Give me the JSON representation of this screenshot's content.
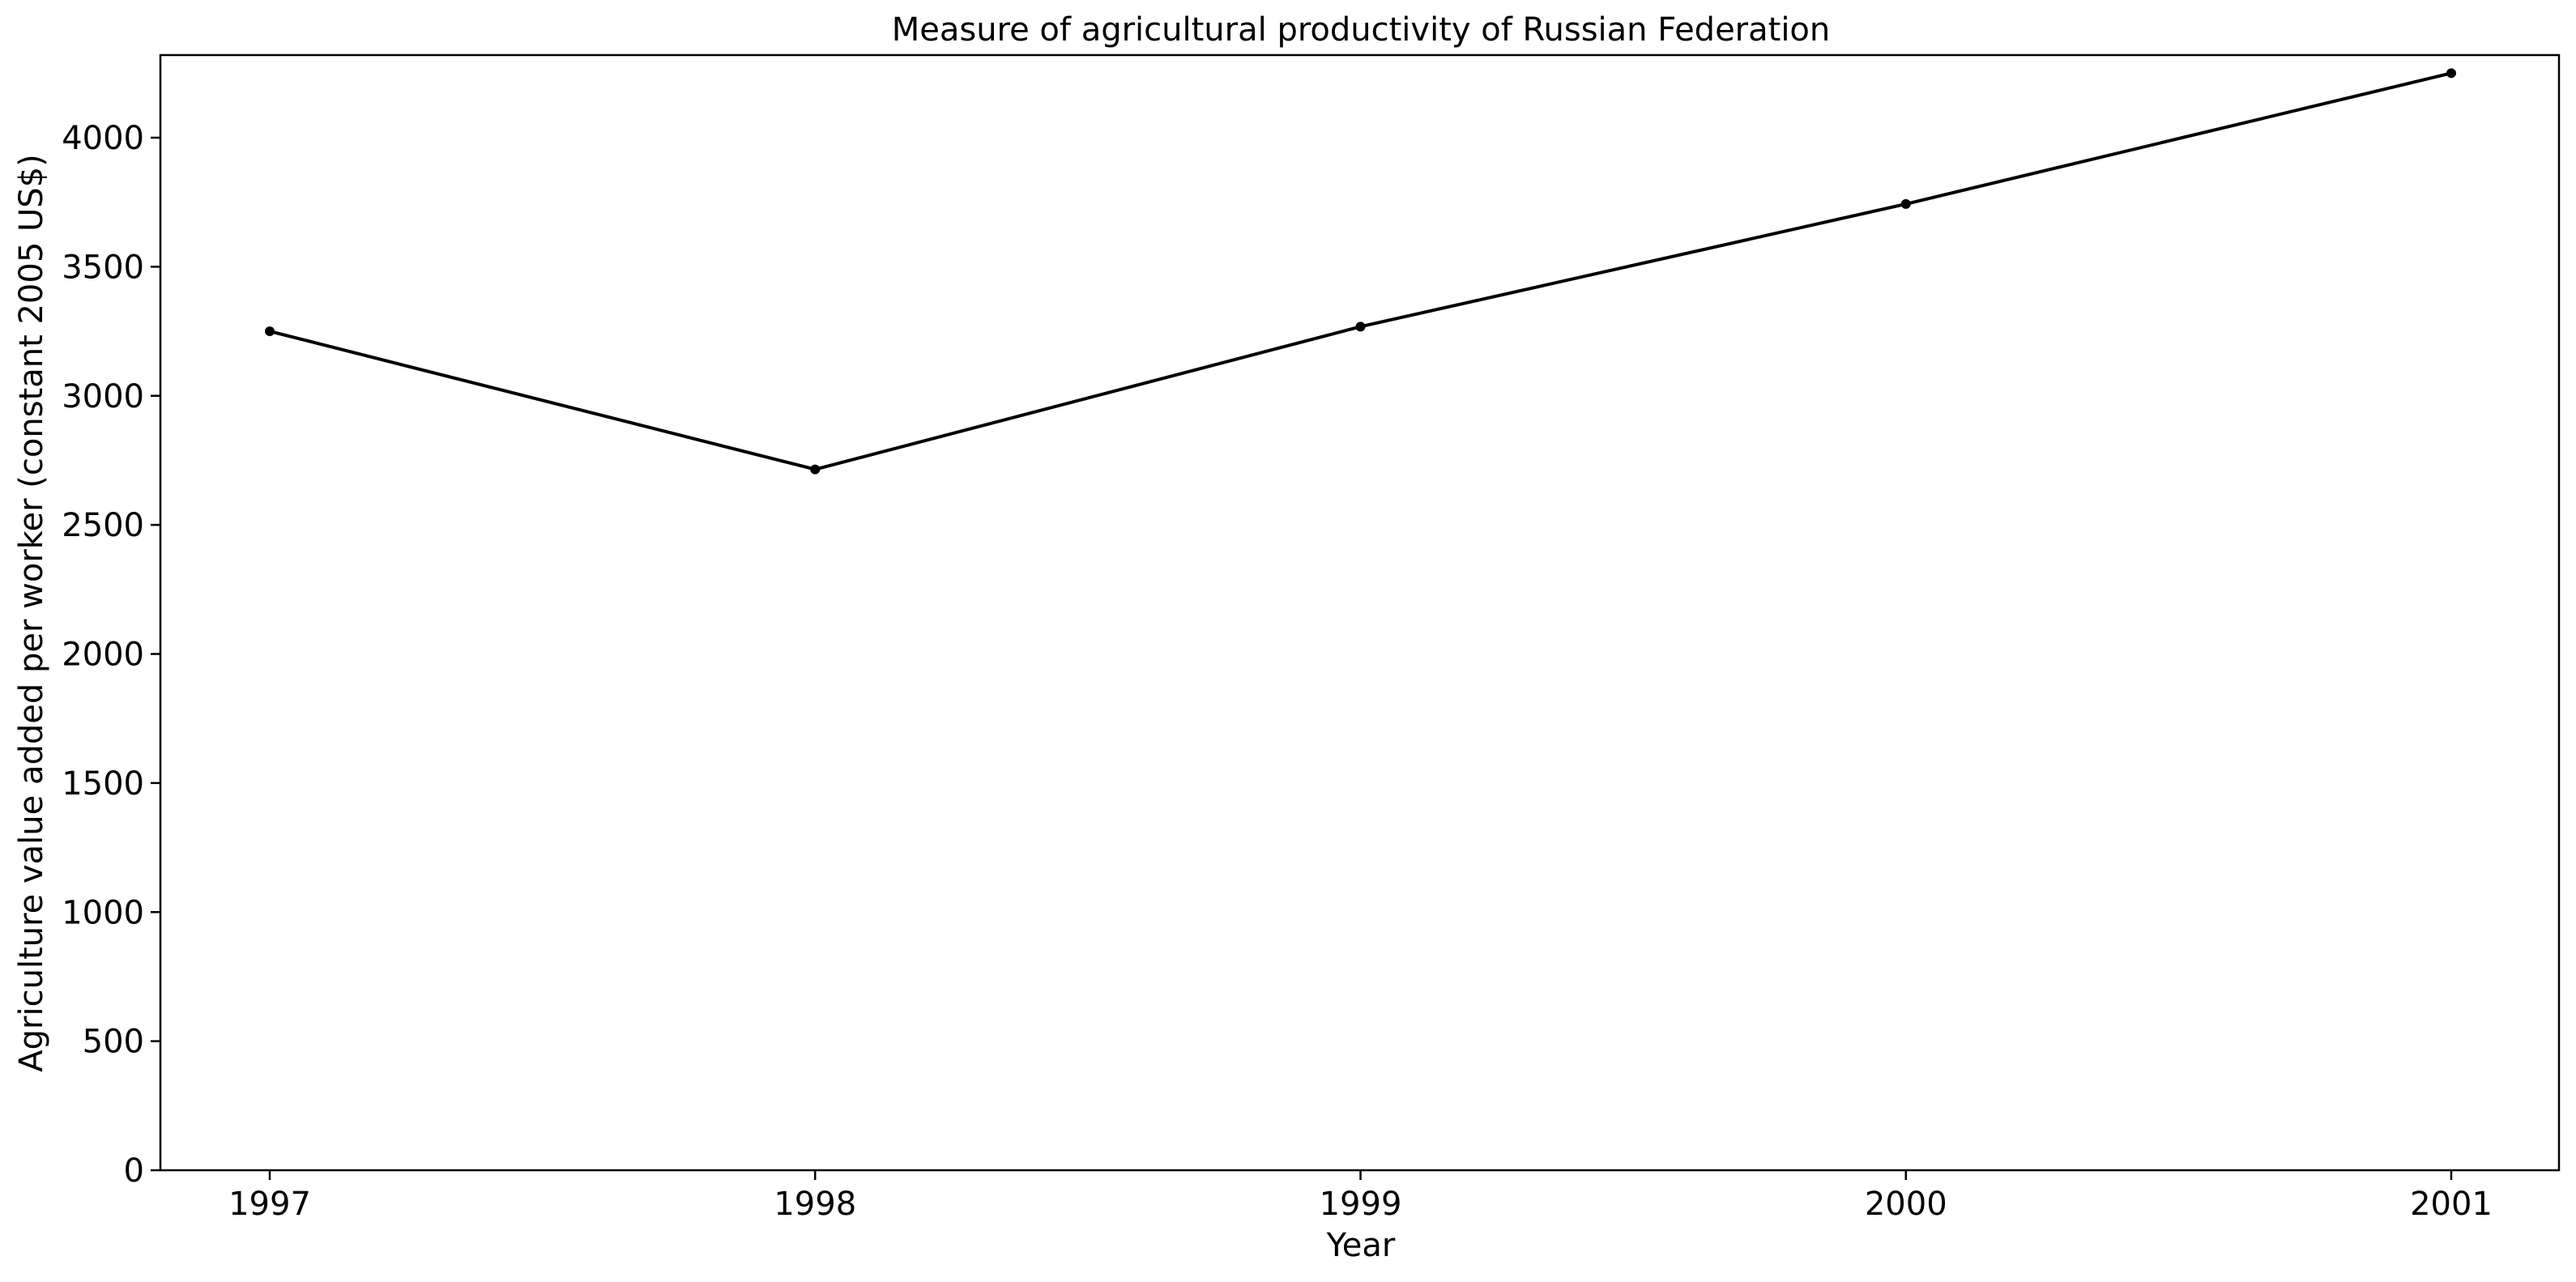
{
  "chart_data": {
    "type": "line",
    "title": "Measure of agricultural productivity of Russian Federation",
    "xlabel": "Year",
    "ylabel": "Agriculture value added per worker (constant 2005 US$)",
    "x": [
      "1997",
      "1998",
      "1999",
      "2000",
      "2001"
    ],
    "series": [
      {
        "values": [
          3250,
          2715,
          3268,
          3743,
          4250
        ],
        "color": "#000000",
        "marker": "dot"
      }
    ],
    "ylim": [
      0,
      4320
    ],
    "yticks": [
      0,
      500,
      1000,
      1500,
      2000,
      2500,
      3000,
      3500,
      4000
    ],
    "ytick_labels": [
      "0",
      "500",
      "1000",
      "1500",
      "2000",
      "2500",
      "3000",
      "3500",
      "4000"
    ],
    "grid": false,
    "legend": "none"
  }
}
